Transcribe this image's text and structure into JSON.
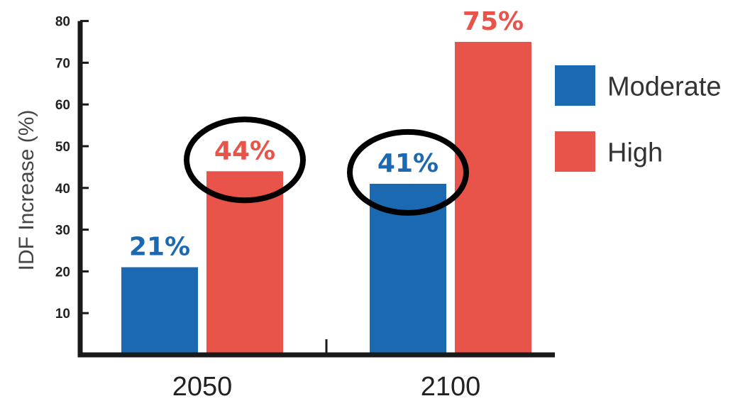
{
  "chart_data": {
    "type": "bar",
    "title": "",
    "xlabel": "",
    "ylabel": "IDF Increase (%)",
    "ylim": [
      0,
      80
    ],
    "yticks": [
      10,
      20,
      30,
      40,
      50,
      60,
      70,
      80
    ],
    "categories": [
      "2050",
      "2100"
    ],
    "series": [
      {
        "name": "Moderate",
        "values": [
          21,
          41
        ],
        "labels": [
          "21%",
          "41%"
        ],
        "color": "#1b6ab1"
      },
      {
        "name": "High",
        "values": [
          44,
          75
        ],
        "labels": [
          "44%",
          "75%"
        ],
        "color": "#e8534a"
      }
    ],
    "legend": {
      "placement": "right"
    },
    "grid": false,
    "annotations": [
      {
        "type": "ellipse-highlight",
        "target": "High 2050"
      },
      {
        "type": "ellipse-highlight",
        "target": "Moderate 2100"
      }
    ]
  }
}
